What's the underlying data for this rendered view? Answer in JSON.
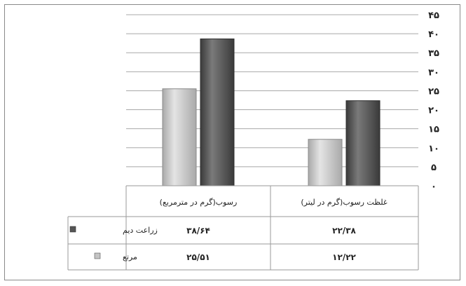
{
  "chart_data": {
    "type": "bar",
    "categories": [
      "غلظت رسوب(گرم در لیتر)",
      "رسوب(گرم در مترمربع)"
    ],
    "series": [
      {
        "name": "مرتع",
        "values": [
          12.22,
          25.51
        ],
        "color": "#c4c4c4"
      },
      {
        "name": "زراعت دیم",
        "values": [
          22.38,
          38.64
        ],
        "color": "#555555"
      }
    ],
    "ylim": [
      0,
      45
    ],
    "ytick_values": [
      0,
      5,
      10,
      15,
      20,
      25,
      30,
      35,
      40,
      45
    ],
    "ytick_labels": [
      "۰",
      "۵",
      "۱۰",
      "۱۵",
      "۲۰",
      "۲۵",
      "۳۰",
      "۳۵",
      "۴۰",
      "۴۵"
    ],
    "grid": true,
    "yaxis_side": "right",
    "data_table": {
      "rows": [
        {
          "label": "زراعت دیم",
          "values": [
            "۲۲/۳۸",
            "۳۸/۶۴"
          ]
        },
        {
          "label": "مرتع",
          "values": [
            "۱۲/۲۲",
            "۲۵/۵۱"
          ]
        }
      ]
    }
  }
}
